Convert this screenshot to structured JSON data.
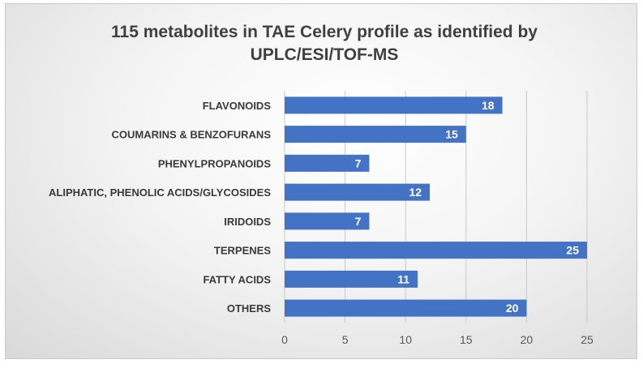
{
  "chart_data": {
    "type": "bar",
    "orientation": "horizontal",
    "title": "115 metabolites in TAE Celery profile as identified by UPLC/ESI/TOF-MS",
    "categories": [
      "FLAVONOIDS",
      "COUMARINS & BENZOFURANS",
      "PHENYLPROPANOIDS",
      "ALIPHATIC, PHENOLIC ACIDS/GLYCOSIDES",
      "IRIDOIDS",
      "TERPENES",
      "FATTY ACIDS",
      "OTHERS"
    ],
    "values": [
      18,
      15,
      7,
      12,
      7,
      25,
      11,
      20
    ],
    "xlabel": "",
    "ylabel": "",
    "xlim": [
      0,
      25
    ],
    "xticks": [
      0,
      5,
      10,
      15,
      20,
      25
    ],
    "grid": true,
    "data_labels": true,
    "legend": "none",
    "bar_color": "#4472c4"
  }
}
